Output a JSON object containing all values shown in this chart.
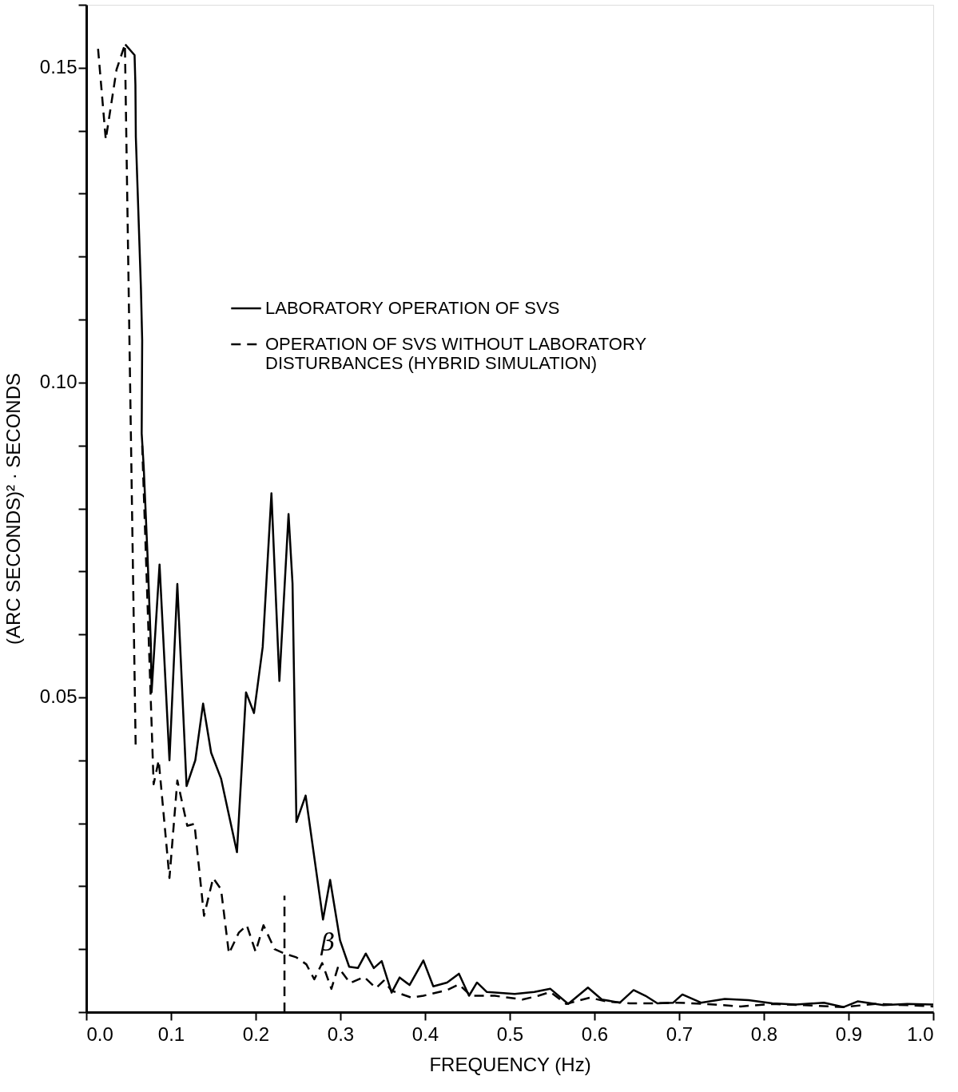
{
  "chart_data": {
    "type": "line",
    "xlabel": "FREQUENCY  (Hz)",
    "ylabel": "(ARC SECONDS)² · SECONDS",
    "xlim": [
      0,
      1.0
    ],
    "ylim": [
      0,
      0.16
    ],
    "xticks": [
      {
        "value": 0,
        "label": "0.0"
      },
      {
        "value": 0.1,
        "label": "0.1"
      },
      {
        "value": 0.2,
        "label": "0.2"
      },
      {
        "value": 0.3,
        "label": "0.3"
      },
      {
        "value": 0.4,
        "label": "0.4"
      },
      {
        "value": 0.5,
        "label": "0.5"
      },
      {
        "value": 0.6,
        "label": "0.6"
      },
      {
        "value": 0.7,
        "label": "0.7"
      },
      {
        "value": 0.8,
        "label": "0.8"
      },
      {
        "value": 0.9,
        "label": "0.9"
      },
      {
        "value": 1.0,
        "label": "1.0"
      }
    ],
    "yticks": [
      {
        "value": 0,
        "label": null
      },
      {
        "value": 0.01,
        "label": null
      },
      {
        "value": 0.02,
        "label": null
      },
      {
        "value": 0.03,
        "label": null
      },
      {
        "value": 0.04,
        "label": null
      },
      {
        "value": 0.05,
        "label": "0.05"
      },
      {
        "value": 0.06,
        "label": null
      },
      {
        "value": 0.07,
        "label": null
      },
      {
        "value": 0.08,
        "label": null
      },
      {
        "value": 0.09,
        "label": null
      },
      {
        "value": 0.1,
        "label": "0.10"
      },
      {
        "value": 0.11,
        "label": null
      },
      {
        "value": 0.12,
        "label": null
      },
      {
        "value": 0.13,
        "label": null
      },
      {
        "value": 0.14,
        "label": null
      },
      {
        "value": 0.15,
        "label": "0.15"
      },
      {
        "value": 0.16,
        "label": null
      }
    ],
    "grid": false,
    "legend": "top left",
    "marker": "none",
    "annotations": [
      "β"
    ],
    "series": [
      {
        "name": "LABORATORY OPERATION OF SVS",
        "color": "#000000",
        "line_style": "solid",
        "x": [
          0.046,
          0.057,
          0.058,
          0.0585,
          0.0605,
          0.0645,
          0.066,
          0.0654,
          0.0678,
          0.0724,
          0.0762,
          0.0771,
          0.0865,
          0.0982,
          0.1075,
          0.1184,
          0.1287,
          0.1379,
          0.1474,
          0.1591,
          0.1779,
          0.1886,
          0.198,
          0.2083,
          0.2186,
          0.228,
          0.2388,
          0.2435,
          0.2481,
          0.259,
          0.2795,
          0.2879,
          0.2996,
          0.3104,
          0.3207,
          0.33,
          0.3395,
          0.3488,
          0.3605,
          0.37,
          0.3817,
          0.398,
          0.4097,
          0.426,
          0.44,
          0.4519,
          0.4613,
          0.473,
          0.5058,
          0.529,
          0.548,
          0.569,
          0.5923,
          0.6087,
          0.63,
          0.6462,
          0.6602,
          0.6743,
          0.693,
          0.7038,
          0.7258,
          0.7539,
          0.7819,
          0.81,
          0.838,
          0.871,
          0.8943,
          0.9107,
          0.9412,
          0.9693,
          1.0
        ],
        "values": [
          0.1537,
          0.152,
          0.1473,
          0.139,
          0.131,
          0.115,
          0.1067,
          0.0919,
          0.0866,
          0.0722,
          0.0585,
          0.0508,
          0.0711,
          0.04,
          0.068,
          0.0359,
          0.04,
          0.049,
          0.0412,
          0.0371,
          0.0254,
          0.0508,
          0.0475,
          0.058,
          0.0824,
          0.0526,
          0.0791,
          0.0681,
          0.0302,
          0.0344,
          0.0147,
          0.021,
          0.0114,
          0.0072,
          0.007,
          0.0093,
          0.007,
          0.0081,
          0.0031,
          0.0055,
          0.0043,
          0.0082,
          0.0041,
          0.0047,
          0.0061,
          0.0026,
          0.0047,
          0.0032,
          0.0029,
          0.0032,
          0.0037,
          0.0013,
          0.0039,
          0.002,
          0.0015,
          0.0035,
          0.0026,
          0.0014,
          0.0015,
          0.0028,
          0.0015,
          0.0021,
          0.0019,
          0.0014,
          0.0012,
          0.0015,
          0.0008,
          0.0017,
          0.0011,
          0.0013,
          0.0012
        ]
      },
      {
        "name": "OPERATION OF SVS WITHOUT LABORATORY\nDISTURBANCES (HYBRID SIMULATION)",
        "color": "#000000",
        "line_style": "dashed",
        "x": [
          0.0139,
          0.023,
          0.0357,
          0.0456,
          0.0583,
          0.062,
          0.066,
          0.0795,
          0.0855,
          0.0982,
          0.1075,
          0.1192,
          0.1277,
          0.139,
          0.1498,
          0.1591,
          0.1684,
          0.18,
          0.1895,
          0.1999,
          0.2092,
          0.2223,
          0.234,
          0.248,
          0.2598,
          0.2692,
          0.2785,
          0.2894,
          0.2973,
          0.3114,
          0.328,
          0.342,
          0.3512,
          0.3605,
          0.384,
          0.398,
          0.426,
          0.44,
          0.4543,
          0.4823,
          0.515,
          0.5338,
          0.548,
          0.5666,
          0.5947,
          0.6134,
          0.6416,
          0.6697,
          0.6977,
          0.7305,
          0.7726,
          0.81,
          0.8475,
          0.8943,
          0.9318,
          0.9693,
          1.0
        ],
        "values": [
          0.153,
          0.1386,
          0.1497,
          0.1537,
          0.0422,
          null,
          0.09,
          0.0362,
          0.04,
          0.0213,
          0.0368,
          0.0296,
          0.0299,
          0.0153,
          0.0213,
          0.0195,
          0.0093,
          0.0126,
          0.0138,
          0.0096,
          0.0138,
          0.01,
          0.0093,
          0.0087,
          0.0076,
          0.0052,
          0.0078,
          0.0037,
          0.0072,
          0.0046,
          0.0056,
          0.0038,
          0.005,
          0.0034,
          0.0023,
          0.0026,
          0.0035,
          0.0044,
          0.0026,
          0.0026,
          0.002,
          0.0026,
          0.0032,
          0.0013,
          0.0023,
          0.0017,
          0.0014,
          0.0014,
          0.0015,
          0.0013,
          0.0009,
          0.0013,
          0.0011,
          0.0008,
          0.0013,
          0.0011,
          0.0009
        ]
      },
      {
        "type": "line",
        "color": "#000000",
        "line_style": "dashed",
        "x": [
          0.234,
          0.234
        ],
        "values": [
          0,
          0.0185
        ]
      }
    ]
  }
}
